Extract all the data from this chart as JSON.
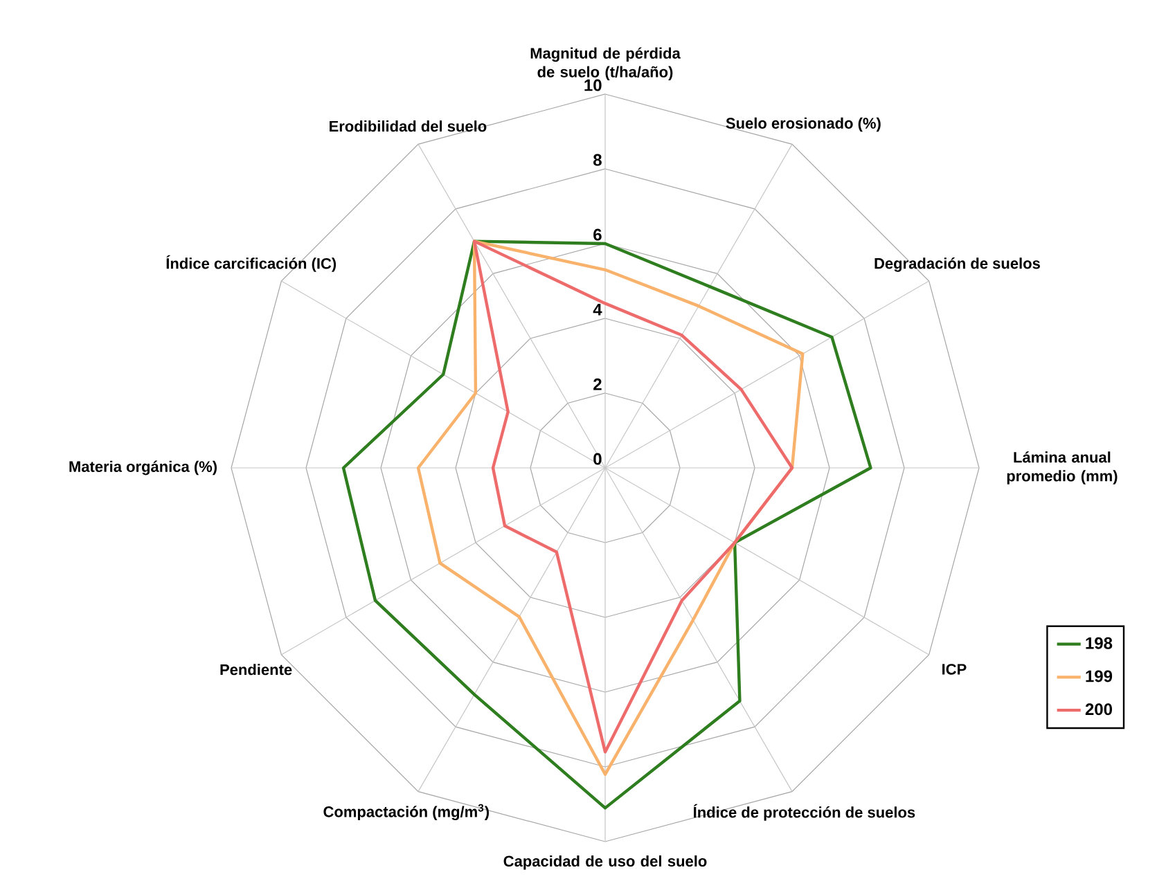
{
  "chart_data": {
    "type": "radar",
    "categories": [
      "Magnitud de pérdida de suelo (t/ha/año)",
      "Suelo erosionado (%)",
      "Degradación de suelos",
      "Lámina anual promedio (mm)",
      "ICP",
      "Índice de protección de suelos",
      "Capacidad de uso del suelo",
      "Compactación (mg/m$^{3}$)",
      "Pendiente",
      "Materia orgánica (%)",
      "Índice carcificación (IC)",
      "Erodibilidad del suelo"
    ],
    "ylim": [
      0,
      10
    ],
    "yticks": [
      0,
      2,
      4,
      6,
      8,
      10
    ],
    "grid": true,
    "legend": "right",
    "series": [
      {
        "name": "198",
        "color": "#2e7d1e",
        "values": [
          6,
          5.6,
          7,
          7.1,
          4,
          7.2,
          9.1,
          7,
          7.1,
          7,
          5,
          7
        ]
      },
      {
        "name": "199",
        "color": "#f9b26b",
        "values": [
          5.3,
          5,
          6.1,
          5,
          4,
          4.7,
          8.2,
          4.6,
          5.1,
          5,
          4,
          7
        ]
      },
      {
        "name": "200",
        "color": "#ee6b6b",
        "values": [
          4.4,
          4.1,
          4.2,
          5,
          4,
          4.1,
          7.6,
          2.6,
          3.1,
          3,
          3,
          7
        ]
      }
    ]
  }
}
